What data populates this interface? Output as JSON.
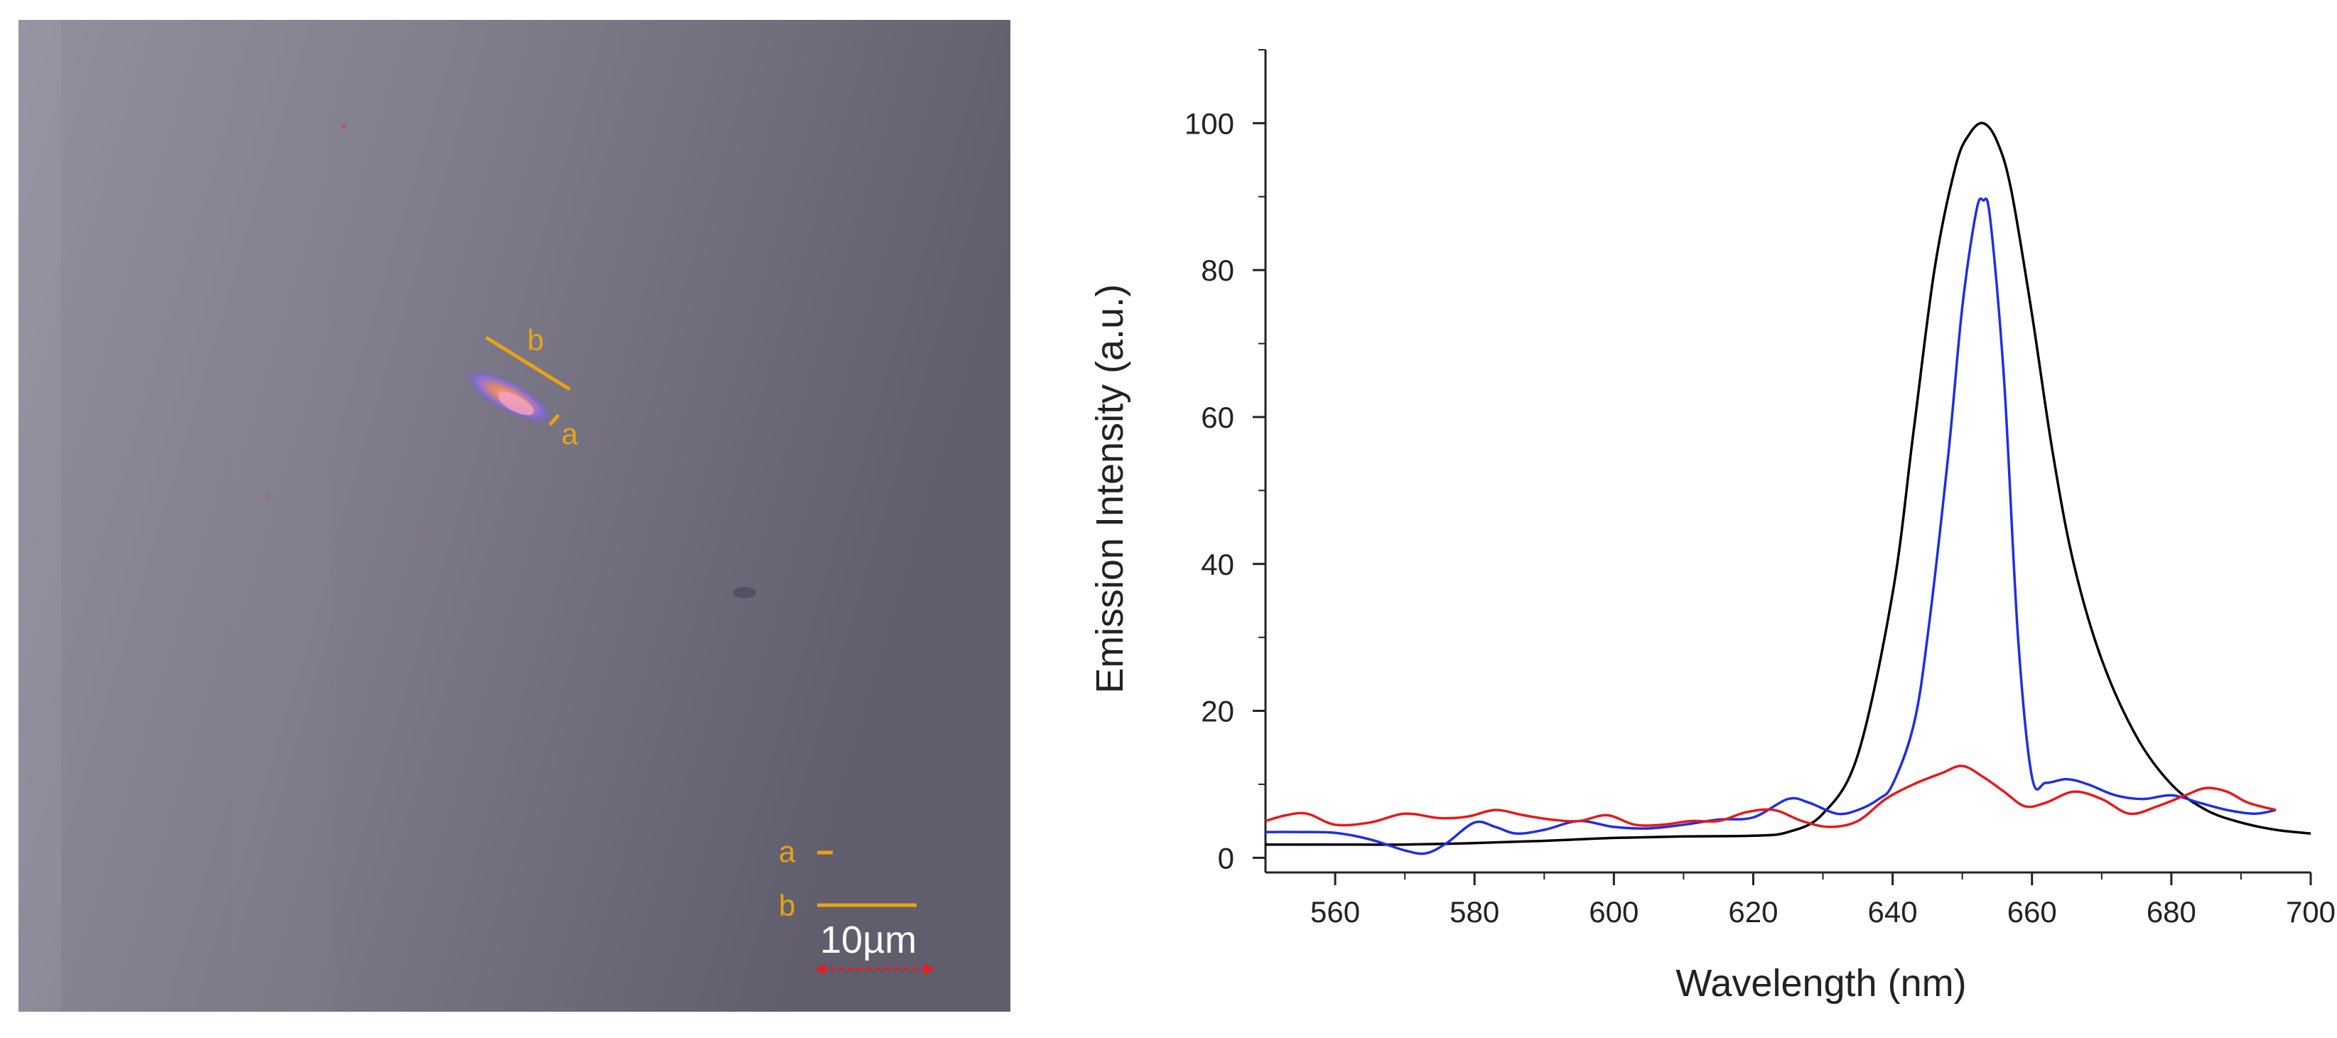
{
  "micrograph": {
    "labels": {
      "b_line": "b",
      "a_line": "a"
    },
    "legend": {
      "a": "a",
      "b": "b"
    },
    "scale_bar": "10µm",
    "colors": {
      "marker": "#e8a317",
      "scale_arrow": "#e02020"
    }
  },
  "chart_data": {
    "type": "line",
    "title": "",
    "xlabel": "Wavelength (nm)",
    "ylabel": "Emission Intensity (a.u.)",
    "xlim": [
      550,
      700
    ],
    "ylim": [
      -2,
      110
    ],
    "xticks": [
      560,
      580,
      600,
      620,
      640,
      660,
      680,
      700
    ],
    "yticks": [
      0,
      20,
      40,
      60,
      80,
      100
    ],
    "grid": false,
    "series": [
      {
        "name": "black",
        "color": "#000000",
        "x": [
          550,
          560,
          570,
          580,
          590,
          600,
          610,
          620,
          625,
          630,
          635,
          640,
          643,
          646,
          649,
          651,
          653,
          655,
          657,
          660,
          663,
          666,
          670,
          675,
          680,
          685,
          690,
          695,
          700
        ],
        "y": [
          1.8,
          1.8,
          1.8,
          2.0,
          2.3,
          2.7,
          2.9,
          3.0,
          3.5,
          6.0,
          14,
          36,
          58,
          80,
          94,
          98.5,
          100,
          97.5,
          91,
          74,
          55,
          40,
          27,
          16.5,
          10,
          6.5,
          4.8,
          3.8,
          3.3
        ]
      },
      {
        "name": "blue",
        "color": "#1f2fe0",
        "x": [
          550,
          555,
          560,
          565,
          570,
          573,
          576,
          580,
          583,
          586,
          590,
          595,
          600,
          605,
          610,
          615,
          620,
          625,
          628,
          632,
          635,
          638,
          640,
          643,
          645,
          648,
          650,
          652,
          653,
          654,
          656,
          658,
          660,
          662,
          665,
          668,
          672,
          676,
          680,
          684,
          688,
          692,
          695
        ],
        "y": [
          3.5,
          3.5,
          3.4,
          2.5,
          1.0,
          0.6,
          2.0,
          4.8,
          4.2,
          3.3,
          3.8,
          5.0,
          4.2,
          4.0,
          4.5,
          5.2,
          5.5,
          8.0,
          7.5,
          6.0,
          6.5,
          8.0,
          10,
          18,
          30,
          55,
          75,
          88,
          89.5,
          87,
          65,
          30,
          11,
          10.2,
          10.7,
          10.0,
          8.5,
          8.0,
          8.5,
          7.5,
          6.5,
          6.0,
          6.5
        ]
      },
      {
        "name": "red",
        "color": "#e61a1a",
        "x": [
          550,
          553,
          556,
          560,
          565,
          570,
          575,
          579,
          583,
          587,
          591,
          595,
          599,
          603,
          607,
          611,
          615,
          619,
          623,
          627,
          631,
          635,
          639,
          643,
          647,
          650,
          653,
          656,
          659,
          662,
          666,
          670,
          674,
          678,
          682,
          685,
          688,
          691,
          695
        ],
        "y": [
          5.0,
          5.8,
          6.0,
          4.5,
          4.8,
          6.0,
          5.4,
          5.6,
          6.5,
          5.8,
          5.2,
          5.0,
          5.8,
          4.5,
          4.5,
          5.0,
          5.0,
          6.2,
          6.5,
          5.0,
          4.2,
          5.0,
          8.0,
          10,
          11.5,
          12.5,
          11,
          9.0,
          7.0,
          7.5,
          9.0,
          8.0,
          6.0,
          7.0,
          8.5,
          9.5,
          9.0,
          7.5,
          6.5
        ]
      }
    ]
  }
}
